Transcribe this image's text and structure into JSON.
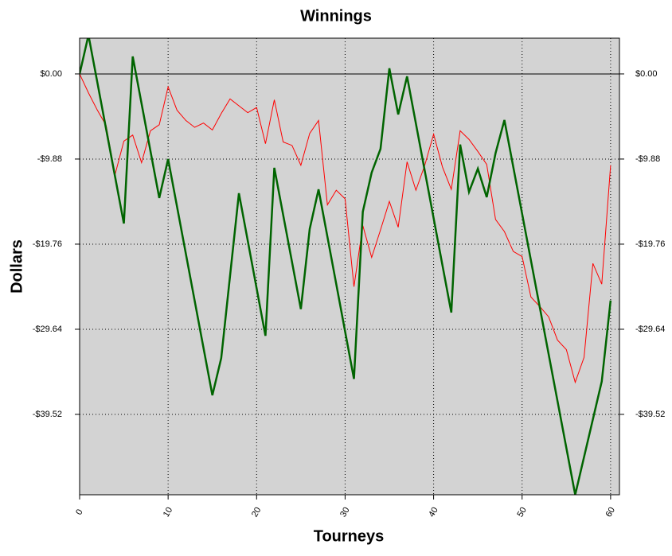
{
  "chart_data": {
    "type": "line",
    "title": "Winnings",
    "xlabel": "Tourneys",
    "ylabel": "Dollars",
    "xlim": [
      0,
      61
    ],
    "ylim": [
      -48.85,
      4.15
    ],
    "xticks": [
      0,
      10,
      20,
      30,
      40,
      50,
      60
    ],
    "yticks": [
      {
        "value": 0,
        "label": "$0.00"
      },
      {
        "value": -9.88,
        "label": "-$9.88"
      },
      {
        "value": -19.76,
        "label": "-$19.76"
      },
      {
        "value": -29.64,
        "label": "-$29.64"
      },
      {
        "value": -39.52,
        "label": "-$39.52"
      }
    ],
    "grid": true,
    "background": "#d3d3d3",
    "series": [
      {
        "color": "#ff0000",
        "width": 1,
        "x": [
          0,
          1,
          2,
          3,
          4,
          5,
          6,
          7,
          8,
          9,
          10,
          11,
          12,
          13,
          14,
          15,
          16,
          17,
          18,
          19,
          20,
          21,
          22,
          23,
          24,
          25,
          26,
          27,
          28,
          29,
          30,
          31,
          32,
          33,
          34,
          35,
          36,
          37,
          38,
          39,
          40,
          41,
          42,
          43,
          44,
          45,
          46,
          47,
          48,
          49,
          50,
          51,
          52,
          53,
          54,
          55,
          56,
          57,
          58,
          59,
          60
        ],
        "values": [
          0,
          -2.2,
          -4.2,
          -6.0,
          -11.7,
          -7.8,
          -7.1,
          -10.3,
          -6.6,
          -5.9,
          -1.5,
          -4.2,
          -5.4,
          -6.2,
          -5.7,
          -6.5,
          -4.6,
          -2.9,
          -3.7,
          -4.5,
          -3.9,
          -8.1,
          -3.0,
          -7.9,
          -8.3,
          -10.6,
          -6.9,
          -5.4,
          -15.2,
          -13.5,
          -14.5,
          -24.7,
          -17.6,
          -21.3,
          -18.1,
          -14.8,
          -17.8,
          -10.2,
          -13.5,
          -10.6,
          -7.0,
          -10.8,
          -13.4,
          -6.6,
          -7.6,
          -9.0,
          -10.5,
          -16.9,
          -18.3,
          -20.6,
          -21.2,
          -25.9,
          -27.0,
          -28.2,
          -30.9,
          -32.0,
          -35.8,
          -32.9,
          -22.0,
          -24.4,
          -10.6
        ]
      },
      {
        "color": "#006400",
        "width": 2.5,
        "x": [
          0,
          1,
          5,
          6,
          9,
          10,
          15,
          16,
          18,
          21,
          22,
          25,
          26,
          27,
          31,
          32,
          33,
          34,
          35,
          36,
          37,
          42,
          43,
          44,
          45,
          46,
          47,
          48,
          56,
          59,
          60
        ],
        "values": [
          0,
          4.5,
          -17.36,
          2.03,
          -14.4,
          -9.88,
          -37.3,
          -33.0,
          -13.85,
          -30.4,
          -10.9,
          -27.3,
          -18.0,
          -13.4,
          -35.4,
          -16.0,
          -11.45,
          -8.7,
          0.65,
          -4.7,
          -0.28,
          -27.7,
          -8.2,
          -13.7,
          -11.0,
          -14.3,
          -9.2,
          -5.35,
          -48.85,
          -35.7,
          -26.3
        ]
      }
    ]
  }
}
